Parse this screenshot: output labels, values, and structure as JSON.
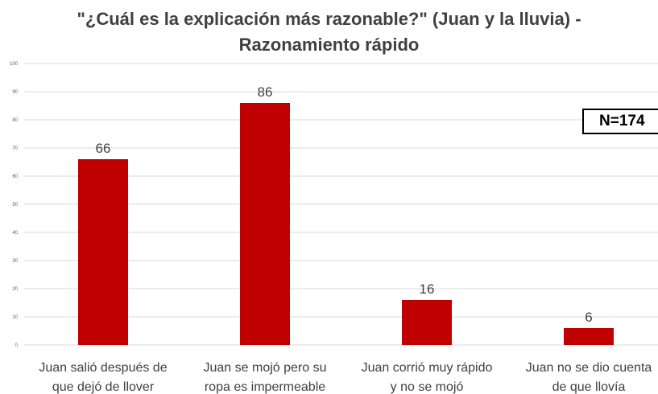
{
  "chart_data": {
    "type": "bar",
    "title_lines": [
      "\"¿Cuál es la explicación más razonable?\" (Juan y la lluvia) -",
      "Razonamiento rápido"
    ],
    "categories": [
      [
        "Juan salió después de",
        "que dejó de llover"
      ],
      [
        "Juan se mojó pero su",
        "ropa es impermeable"
      ],
      [
        "Juan corrió muy rápido",
        "y no se mojó"
      ],
      [
        "Juan no se dio cuenta",
        "de que llovía"
      ]
    ],
    "values": [
      66,
      86,
      16,
      6
    ],
    "ylim": [
      0,
      100
    ],
    "yticks": [
      0,
      10,
      20,
      30,
      40,
      50,
      60,
      70,
      80,
      90,
      100
    ],
    "grid": true,
    "legend": "none",
    "annotation": "N=174",
    "bar_color": "#c00000",
    "grid_color": "#d9d9d9"
  }
}
